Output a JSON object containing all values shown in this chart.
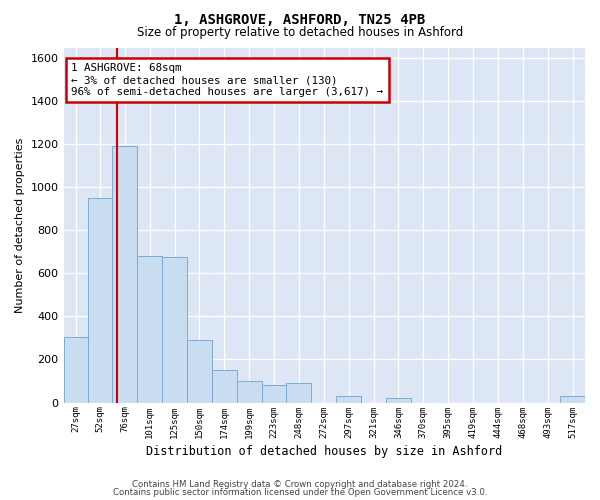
{
  "title": "1, ASHGROVE, ASHFORD, TN25 4PB",
  "subtitle": "Size of property relative to detached houses in Ashford",
  "xlabel": "Distribution of detached houses by size in Ashford",
  "ylabel": "Number of detached properties",
  "bar_color": "#c9ddf0",
  "bar_edge_color": "#7aadd4",
  "background_color": "#dce6f5",
  "grid_color": "#ffffff",
  "annotation_box_color": "#cc0000",
  "annotation_line_color": "#cc0000",
  "property_line_x": 68,
  "annotation_text": "1 ASHGROVE: 68sqm\n← 3% of detached houses are smaller (130)\n96% of semi-detached houses are larger (3,617) →",
  "bin_labels": [
    "27sqm",
    "52sqm",
    "76sqm",
    "101sqm",
    "125sqm",
    "150sqm",
    "174sqm",
    "199sqm",
    "223sqm",
    "248sqm",
    "272sqm",
    "297sqm",
    "321sqm",
    "346sqm",
    "370sqm",
    "395sqm",
    "419sqm",
    "444sqm",
    "468sqm",
    "493sqm",
    "517sqm"
  ],
  "bin_edges": [
    14.5,
    39.5,
    63.5,
    88.5,
    113.5,
    138.5,
    163.5,
    188.5,
    213.5,
    238.5,
    263.5,
    288.5,
    313.5,
    338.5,
    363.5,
    388.5,
    413.5,
    438.5,
    463.5,
    488.5,
    513.5,
    538.5
  ],
  "bar_heights": [
    305,
    950,
    1190,
    680,
    675,
    290,
    150,
    100,
    80,
    90,
    0,
    30,
    0,
    20,
    0,
    0,
    0,
    0,
    0,
    0,
    30
  ],
  "ylim": [
    0,
    1650
  ],
  "yticks": [
    0,
    200,
    400,
    600,
    800,
    1000,
    1200,
    1400,
    1600
  ],
  "footer1": "Contains HM Land Registry data © Crown copyright and database right 2024.",
  "footer2": "Contains public sector information licensed under the Open Government Licence v3.0."
}
